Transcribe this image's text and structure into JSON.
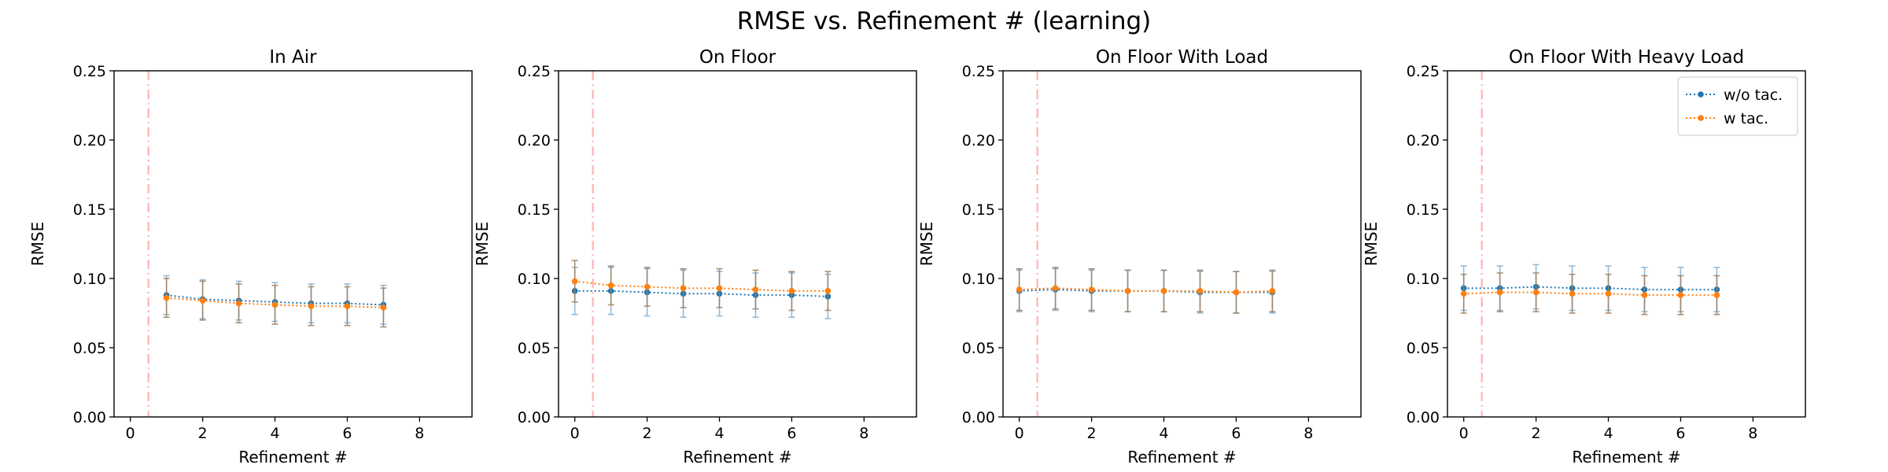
{
  "figure": {
    "suptitle": "RMSE vs. Refinement # (learning)"
  },
  "colors": {
    "wo_tac": "#1f77b4",
    "w_tac": "#ff7f0e",
    "vline": "#ffb3b3",
    "errorbar_wo": "#7fb0d5",
    "errorbar_w": "#a08060"
  },
  "legend": {
    "entries": [
      "w/o tac.",
      "w tac."
    ],
    "placement": "upper right",
    "subplot_index": 3
  },
  "chart_data": [
    {
      "type": "line",
      "title": "In Air",
      "xlabel": "Refinement #",
      "ylabel": "RMSE",
      "xlim": [
        -0.45,
        9.45
      ],
      "ylim": [
        0,
        0.25
      ],
      "xticks": [
        "0",
        "2",
        "4",
        "6",
        "8"
      ],
      "yticks": [
        "0.00",
        "0.05",
        "0.10",
        "0.15",
        "0.20",
        "0.25"
      ],
      "vline_x": 0.5,
      "series": [
        {
          "name": "w/o tac.",
          "x": [
            1,
            2,
            3,
            4,
            5,
            6,
            7
          ],
          "y": [
            0.088,
            0.085,
            0.084,
            0.083,
            0.082,
            0.082,
            0.081
          ],
          "err": [
            0.014,
            0.014,
            0.014,
            0.014,
            0.014,
            0.014,
            0.014
          ]
        },
        {
          "name": "w tac.",
          "x": [
            1,
            2,
            3,
            4,
            5,
            6,
            7
          ],
          "y": [
            0.086,
            0.084,
            0.082,
            0.081,
            0.08,
            0.08,
            0.079
          ],
          "err": [
            0.014,
            0.014,
            0.014,
            0.014,
            0.014,
            0.014,
            0.014
          ]
        }
      ]
    },
    {
      "type": "line",
      "title": "On Floor",
      "xlabel": "Refinement #",
      "ylabel": "RMSE",
      "xlim": [
        -0.45,
        9.45
      ],
      "ylim": [
        0,
        0.25
      ],
      "xticks": [
        "0",
        "2",
        "4",
        "6",
        "8"
      ],
      "yticks": [
        "0.00",
        "0.05",
        "0.10",
        "0.15",
        "0.20",
        "0.25"
      ],
      "vline_x": 0.5,
      "series": [
        {
          "name": "w/o tac.",
          "x": [
            0,
            1,
            2,
            3,
            4,
            5,
            6,
            7
          ],
          "y": [
            0.091,
            0.091,
            0.09,
            0.089,
            0.089,
            0.088,
            0.088,
            0.087
          ],
          "err": [
            0.017,
            0.017,
            0.017,
            0.017,
            0.016,
            0.016,
            0.016,
            0.016
          ]
        },
        {
          "name": "w tac.",
          "x": [
            0,
            1,
            2,
            3,
            4,
            5,
            6,
            7
          ],
          "y": [
            0.098,
            0.095,
            0.094,
            0.093,
            0.093,
            0.092,
            0.091,
            0.091
          ],
          "err": [
            0.015,
            0.014,
            0.014,
            0.014,
            0.014,
            0.014,
            0.014,
            0.014
          ]
        }
      ]
    },
    {
      "type": "line",
      "title": "On Floor With Load",
      "xlabel": "Refinement #",
      "ylabel": "RMSE",
      "xlim": [
        -0.45,
        9.45
      ],
      "ylim": [
        0,
        0.25
      ],
      "xticks": [
        "0",
        "2",
        "4",
        "6",
        "8"
      ],
      "yticks": [
        "0.00",
        "0.05",
        "0.10",
        "0.15",
        "0.20",
        "0.25"
      ],
      "vline_x": 0.5,
      "series": [
        {
          "name": "w/o tac.",
          "x": [
            0,
            1,
            2,
            3,
            4,
            5,
            6,
            7
          ],
          "y": [
            0.091,
            0.092,
            0.091,
            0.091,
            0.091,
            0.09,
            0.09,
            0.09
          ],
          "err": [
            0.015,
            0.015,
            0.015,
            0.015,
            0.015,
            0.015,
            0.015,
            0.015
          ]
        },
        {
          "name": "w tac.",
          "x": [
            0,
            1,
            2,
            3,
            4,
            5,
            6,
            7
          ],
          "y": [
            0.092,
            0.093,
            0.092,
            0.091,
            0.091,
            0.091,
            0.09,
            0.091
          ],
          "err": [
            0.015,
            0.015,
            0.015,
            0.015,
            0.015,
            0.015,
            0.015,
            0.015
          ]
        }
      ]
    },
    {
      "type": "line",
      "title": "On Floor With Heavy Load",
      "xlabel": "Refinement #",
      "ylabel": "RMSE",
      "xlim": [
        -0.45,
        9.45
      ],
      "ylim": [
        0,
        0.25
      ],
      "xticks": [
        "0",
        "2",
        "4",
        "6",
        "8"
      ],
      "yticks": [
        "0.00",
        "0.05",
        "0.10",
        "0.15",
        "0.20",
        "0.25"
      ],
      "vline_x": 0.5,
      "series": [
        {
          "name": "w/o tac.",
          "x": [
            0,
            1,
            2,
            3,
            4,
            5,
            6,
            7
          ],
          "y": [
            0.093,
            0.093,
            0.094,
            0.093,
            0.093,
            0.092,
            0.092,
            0.092
          ],
          "err": [
            0.016,
            0.016,
            0.016,
            0.016,
            0.016,
            0.016,
            0.016,
            0.016
          ]
        },
        {
          "name": "w tac.",
          "x": [
            0,
            1,
            2,
            3,
            4,
            5,
            6,
            7
          ],
          "y": [
            0.089,
            0.09,
            0.09,
            0.089,
            0.089,
            0.088,
            0.088,
            0.088
          ],
          "err": [
            0.014,
            0.014,
            0.014,
            0.014,
            0.014,
            0.014,
            0.014,
            0.014
          ]
        }
      ]
    }
  ]
}
